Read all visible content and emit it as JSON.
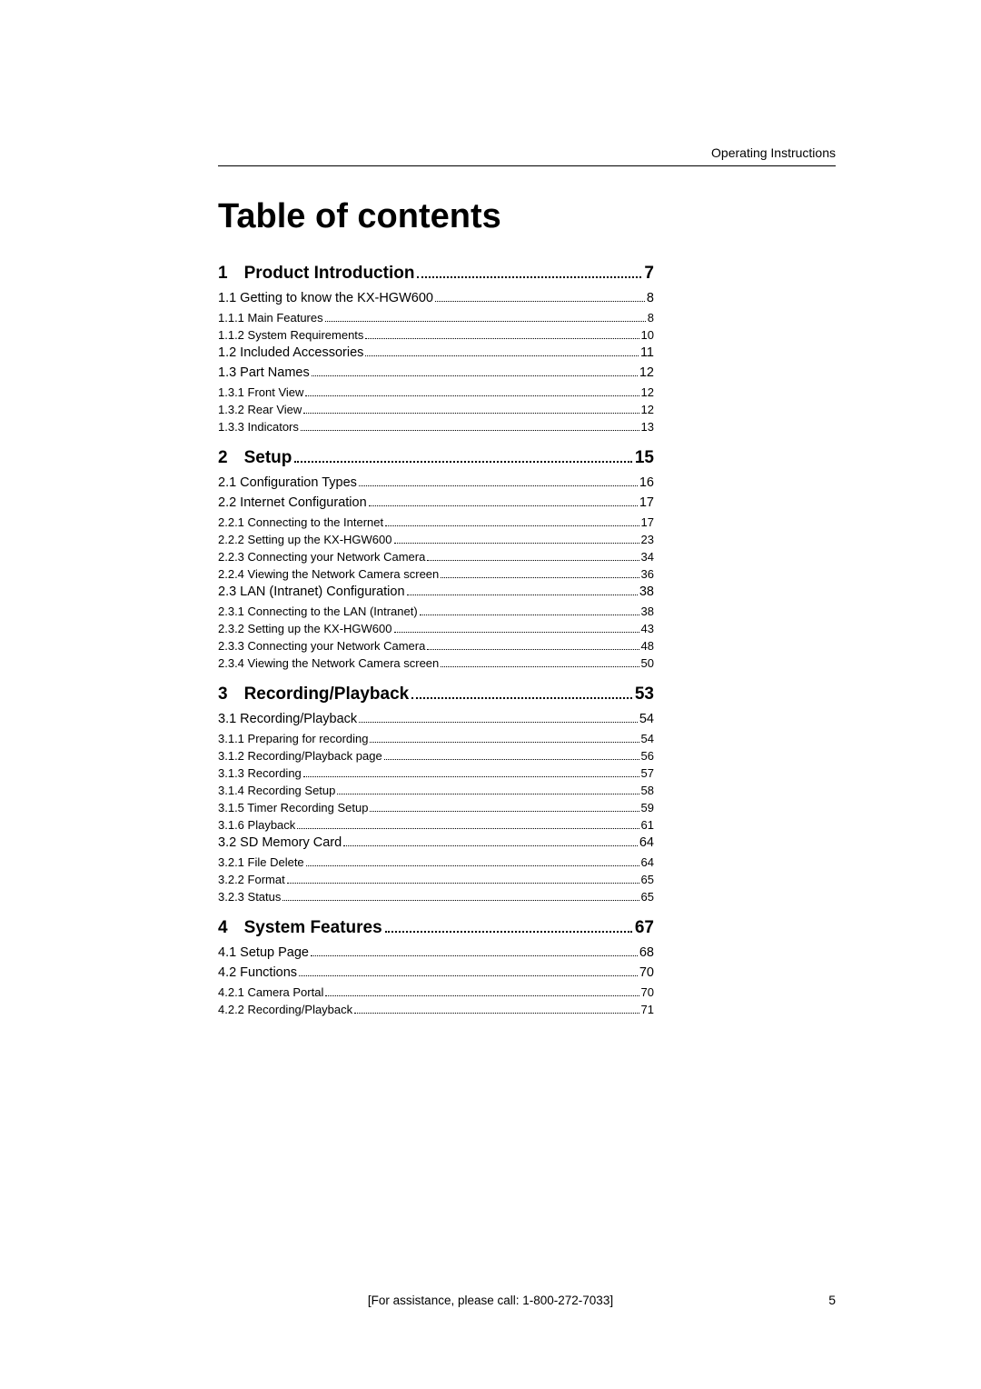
{
  "header": "Operating Instructions",
  "title": "Table of contents",
  "footer": "[For assistance, please call: 1-800-272-7033]",
  "pageNumber": "5",
  "toc": [
    {
      "level": "chapter",
      "num": "1",
      "label": "Product Introduction",
      "page": "7"
    },
    {
      "level": "l1",
      "label": "1.1 Getting to know the KX-HGW600",
      "page": "8"
    },
    {
      "level": "l2",
      "label": "1.1.1 Main Features",
      "page": "8"
    },
    {
      "level": "l2",
      "label": "1.1.2 System Requirements",
      "page": "10"
    },
    {
      "level": "l1",
      "label": "1.2 Included Accessories",
      "page": "11"
    },
    {
      "level": "l1",
      "label": "1.3 Part Names",
      "page": "12"
    },
    {
      "level": "l2",
      "label": "1.3.1 Front View",
      "page": "12"
    },
    {
      "level": "l2",
      "label": "1.3.2 Rear View",
      "page": "12"
    },
    {
      "level": "l2",
      "label": "1.3.3 Indicators",
      "page": "13"
    },
    {
      "level": "chapter",
      "num": "2",
      "label": "Setup",
      "page": "15"
    },
    {
      "level": "l1",
      "label": "2.1 Configuration Types",
      "page": "16"
    },
    {
      "level": "l1",
      "label": "2.2 Internet Configuration",
      "page": "17"
    },
    {
      "level": "l2",
      "label": "2.2.1 Connecting to the Internet",
      "page": "17"
    },
    {
      "level": "l2",
      "label": "2.2.2 Setting up the KX-HGW600",
      "page": "23"
    },
    {
      "level": "l2",
      "label": "2.2.3 Connecting your Network Camera",
      "page": "34"
    },
    {
      "level": "l2",
      "label": "2.2.4 Viewing the Network Camera screen",
      "page": "36"
    },
    {
      "level": "l1",
      "label": "2.3 LAN (Intranet) Configuration",
      "page": "38"
    },
    {
      "level": "l2",
      "label": "2.3.1 Connecting to the LAN (Intranet)",
      "page": "38"
    },
    {
      "level": "l2",
      "label": "2.3.2 Setting up the KX-HGW600",
      "page": "43"
    },
    {
      "level": "l2",
      "label": "2.3.3 Connecting your Network Camera",
      "page": "48"
    },
    {
      "level": "l2",
      "label": "2.3.4 Viewing the Network Camera screen",
      "page": "50"
    },
    {
      "level": "chapter",
      "num": "3",
      "label": "Recording/Playback",
      "page": "53"
    },
    {
      "level": "l1",
      "label": "3.1 Recording/Playback",
      "page": "54"
    },
    {
      "level": "l2",
      "label": "3.1.1 Preparing for recording",
      "page": "54"
    },
    {
      "level": "l2",
      "label": "3.1.2 Recording/Playback page",
      "page": "56"
    },
    {
      "level": "l2",
      "label": "3.1.3 Recording",
      "page": "57"
    },
    {
      "level": "l2",
      "label": "3.1.4 Recording Setup",
      "page": "58"
    },
    {
      "level": "l2",
      "label": "3.1.5 Timer Recording Setup",
      "page": "59"
    },
    {
      "level": "l2",
      "label": "3.1.6 Playback",
      "page": "61"
    },
    {
      "level": "l1",
      "label": "3.2 SD Memory Card",
      "page": "64"
    },
    {
      "level": "l2",
      "label": "3.2.1 File Delete",
      "page": "64"
    },
    {
      "level": "l2",
      "label": "3.2.2 Format",
      "page": "65"
    },
    {
      "level": "l2",
      "label": "3.2.3 Status",
      "page": "65"
    },
    {
      "level": "chapter",
      "num": "4",
      "label": "System Features",
      "page": "67"
    },
    {
      "level": "l1",
      "label": "4.1 Setup Page",
      "page": "68"
    },
    {
      "level": "l1",
      "label": "4.2 Functions",
      "page": "70"
    },
    {
      "level": "l2",
      "label": "4.2.1 Camera Portal",
      "page": "70"
    },
    {
      "level": "l2",
      "label": "4.2.2 Recording/Playback",
      "page": "71"
    }
  ]
}
